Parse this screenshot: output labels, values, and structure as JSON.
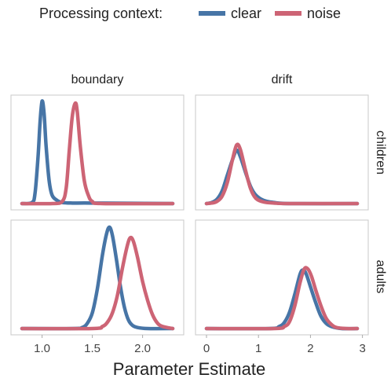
{
  "legend": {
    "title": "Processing context:",
    "items": [
      {
        "label": "clear",
        "color": "#4775a6"
      },
      {
        "label": "noise",
        "color": "#cd6475"
      }
    ]
  },
  "chart_data": {
    "type": "line",
    "subtype": "faceted density",
    "xlabel": "Parameter Estimate",
    "columns": [
      "boundary",
      "drift"
    ],
    "rows": [
      "children",
      "adults"
    ],
    "grid": false,
    "legend_position": "top",
    "x_axes": {
      "boundary": {
        "xlim": [
          0.8,
          2.3
        ],
        "ticks": [
          1.0,
          1.5,
          2.0
        ],
        "tick_labels": [
          "1.0",
          "1.5",
          "2.0"
        ]
      },
      "drift": {
        "xlim": [
          0,
          2.9
        ],
        "ticks": [
          0,
          1,
          2,
          3
        ],
        "tick_labels": [
          "0",
          "1",
          "2",
          "3"
        ]
      }
    },
    "panels": [
      {
        "column": "boundary",
        "row": "children",
        "ylim": [
          0,
          1.0
        ],
        "series": [
          {
            "name": "clear",
            "x": [
              0.8,
              0.9,
              0.93,
              0.96,
              0.98,
              1.0,
              1.02,
              1.04,
              1.07,
              1.1,
              1.15,
              1.2,
              1.3,
              1.5,
              2.3
            ],
            "y": [
              0,
              0.01,
              0.1,
              0.45,
              0.78,
              0.98,
              0.86,
              0.55,
              0.22,
              0.08,
              0.03,
              0.01,
              0.005,
              0.005,
              0
            ]
          },
          {
            "name": "noise",
            "x": [
              0.8,
              1.1,
              1.2,
              1.24,
              1.27,
              1.3,
              1.33,
              1.35,
              1.38,
              1.42,
              1.46,
              1.5,
              1.6,
              2.3
            ],
            "y": [
              0,
              0,
              0.02,
              0.15,
              0.5,
              0.83,
              0.96,
              0.88,
              0.55,
              0.22,
              0.08,
              0.02,
              0,
              0
            ]
          }
        ]
      },
      {
        "column": "drift",
        "row": "children",
        "ylim": [
          0,
          1.0
        ],
        "series": [
          {
            "name": "clear",
            "x": [
              0,
              0.1,
              0.2,
              0.3,
              0.4,
              0.5,
              0.58,
              0.65,
              0.75,
              0.85,
              0.95,
              1.1,
              1.3,
              1.6,
              2.9
            ],
            "y": [
              0,
              0.01,
              0.04,
              0.12,
              0.27,
              0.42,
              0.51,
              0.45,
              0.3,
              0.16,
              0.08,
              0.03,
              0.01,
              0,
              0
            ]
          },
          {
            "name": "noise",
            "x": [
              0,
              0.1,
              0.2,
              0.3,
              0.4,
              0.5,
              0.58,
              0.65,
              0.75,
              0.85,
              0.95,
              1.1,
              1.3,
              1.6,
              2.9
            ],
            "y": [
              0,
              0.005,
              0.02,
              0.07,
              0.2,
              0.42,
              0.56,
              0.52,
              0.32,
              0.14,
              0.05,
              0.015,
              0.005,
              0,
              0
            ]
          }
        ]
      },
      {
        "column": "boundary",
        "row": "adults",
        "ylim": [
          0,
          1.0
        ],
        "series": [
          {
            "name": "clear",
            "x": [
              0.8,
              1.3,
              1.4,
              1.45,
              1.5,
              1.55,
              1.6,
              1.64,
              1.67,
              1.7,
              1.74,
              1.78,
              1.82,
              1.86,
              1.9,
              1.95,
              2.05,
              2.3
            ],
            "y": [
              0,
              0,
              0.01,
              0.05,
              0.15,
              0.38,
              0.7,
              0.9,
              0.97,
              0.89,
              0.66,
              0.4,
              0.2,
              0.08,
              0.03,
              0.01,
              0,
              0
            ]
          },
          {
            "name": "noise",
            "x": [
              0.8,
              1.5,
              1.6,
              1.65,
              1.7,
              1.75,
              1.8,
              1.85,
              1.88,
              1.91,
              1.95,
              2.0,
              2.05,
              2.1,
              2.15,
              2.2,
              2.3
            ],
            "y": [
              0,
              0,
              0.02,
              0.06,
              0.15,
              0.32,
              0.58,
              0.8,
              0.87,
              0.83,
              0.68,
              0.45,
              0.27,
              0.13,
              0.05,
              0.02,
              0
            ]
          }
        ]
      },
      {
        "column": "drift",
        "row": "adults",
        "ylim": [
          0,
          1.0
        ],
        "series": [
          {
            "name": "clear",
            "x": [
              0,
              1.2,
              1.4,
              1.5,
              1.6,
              1.7,
              1.8,
              1.86,
              1.92,
              2.0,
              2.1,
              2.2,
              2.3,
              2.4,
              2.6,
              2.9
            ],
            "y": [
              0,
              0,
              0.02,
              0.06,
              0.16,
              0.33,
              0.52,
              0.56,
              0.52,
              0.4,
              0.25,
              0.12,
              0.05,
              0.02,
              0,
              0
            ]
          },
          {
            "name": "noise",
            "x": [
              0,
              1.3,
              1.5,
              1.6,
              1.7,
              1.8,
              1.88,
              1.95,
              2.02,
              2.1,
              2.2,
              2.3,
              2.4,
              2.5,
              2.7,
              2.9
            ],
            "y": [
              0,
              0,
              0.02,
              0.07,
              0.22,
              0.44,
              0.57,
              0.57,
              0.5,
              0.37,
              0.22,
              0.1,
              0.04,
              0.01,
              0,
              0
            ]
          }
        ]
      }
    ]
  }
}
